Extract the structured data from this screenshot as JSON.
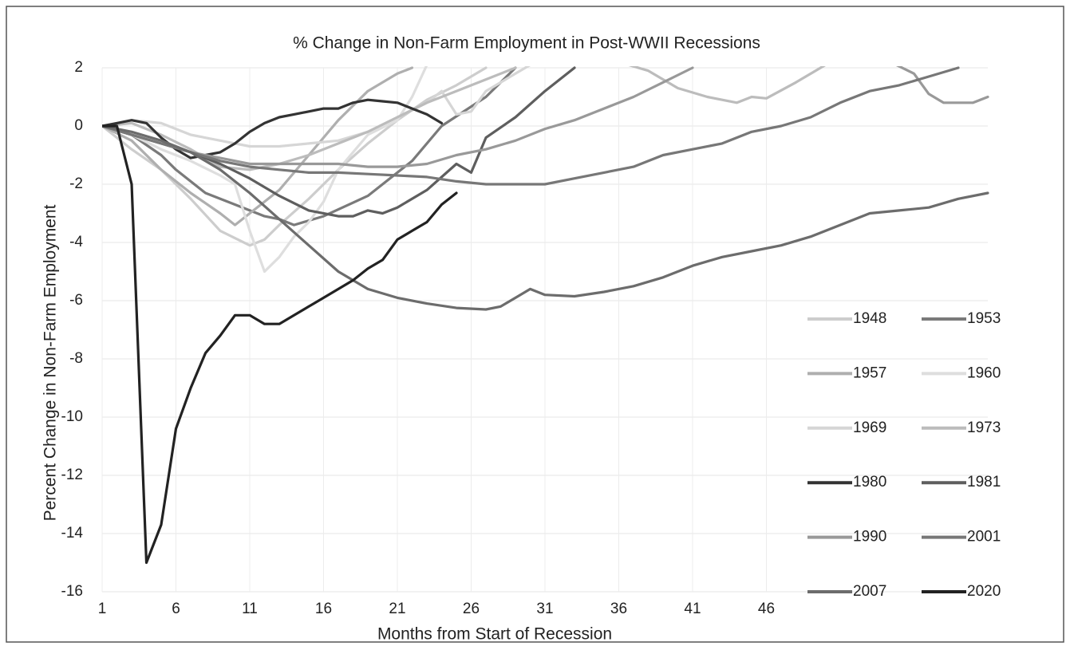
{
  "chart_data": {
    "type": "line",
    "title": "% Change in Non-Farm Employment in Post-WWII Recessions",
    "x_label": "Months from Start of Recession",
    "y_label": "Percent Change in Non-Farm Employment",
    "xlim": [
      1,
      61
    ],
    "xticks": [
      1,
      6,
      11,
      16,
      21,
      26,
      31,
      36,
      41,
      46
    ],
    "ylim": [
      -16,
      2
    ],
    "yticks": [
      -16,
      -14,
      -12,
      -10,
      -8,
      -6,
      -4,
      -2,
      0,
      2
    ],
    "grid": true,
    "legend_position": "lower right",
    "series": [
      {
        "name": "1948",
        "color": "#cdcdcd",
        "x": [
          1,
          3,
          5,
          7,
          9,
          11,
          12,
          13,
          15,
          17,
          19,
          21,
          23,
          25,
          27
        ],
        "values": [
          0,
          -0.8,
          -1.5,
          -2.5,
          -3.6,
          -4.1,
          -3.9,
          -3.4,
          -2.5,
          -1.5,
          -0.6,
          0.2,
          0.9,
          1.4,
          2.0
        ]
      },
      {
        "name": "1953",
        "color": "#7a7a7a",
        "x": [
          1,
          3,
          5,
          6,
          8,
          10,
          12,
          13,
          14,
          16,
          19,
          22,
          24,
          27,
          29
        ],
        "values": [
          0,
          -0.3,
          -1.0,
          -1.5,
          -2.3,
          -2.7,
          -3.1,
          -3.2,
          -3.4,
          -3.1,
          -2.4,
          -1.2,
          0,
          1.0,
          2.0
        ]
      },
      {
        "name": "1957",
        "color": "#afafaf",
        "x": [
          1,
          3,
          5,
          7,
          9,
          10,
          11,
          13,
          15,
          17,
          19,
          21,
          22
        ],
        "values": [
          0,
          -0.5,
          -1.5,
          -2.3,
          -3.0,
          -3.4,
          -3.0,
          -2.2,
          -1.0,
          0.2,
          1.2,
          1.8,
          2.0
        ]
      },
      {
        "name": "1960",
        "color": "#dedede",
        "x": [
          1,
          3,
          5,
          7,
          9,
          10,
          11,
          12,
          13,
          14,
          15,
          16,
          17,
          19,
          21,
          22,
          23
        ],
        "values": [
          0,
          -0.3,
          -0.8,
          -1.2,
          -1.7,
          -2.0,
          -3.6,
          -5.0,
          -4.5,
          -3.8,
          -3.3,
          -2.6,
          -1.5,
          -0.3,
          0.2,
          1.0,
          2.1
        ]
      },
      {
        "name": "1969",
        "color": "#d6d6d6",
        "x": [
          1,
          3,
          5,
          7,
          9,
          11,
          13,
          15,
          17,
          19,
          21,
          23,
          24,
          25,
          26,
          27,
          29,
          30
        ],
        "values": [
          0,
          0.2,
          0.1,
          -0.3,
          -0.5,
          -0.7,
          -0.7,
          -0.6,
          -0.5,
          -0.2,
          0.3,
          0.8,
          1.2,
          0.4,
          0.5,
          1.2,
          1.8,
          2.1
        ]
      },
      {
        "name": "1973",
        "color": "#bcbcbc",
        "x": [
          1,
          3,
          5,
          7,
          9,
          11,
          13,
          15,
          17,
          19,
          21,
          23,
          25,
          27,
          29,
          30,
          36,
          38,
          40,
          42,
          44,
          45,
          46,
          48,
          50
        ],
        "values": [
          0,
          0.1,
          -0.3,
          -0.8,
          -1.4,
          -1.5,
          -1.3,
          -1.0,
          -0.6,
          -0.2,
          0.3,
          0.8,
          1.2,
          1.6,
          2.0,
          null,
          2.2,
          1.9,
          1.3,
          1.0,
          0.8,
          1.0,
          0.95,
          1.5,
          2.1
        ]
      },
      {
        "name": "1980",
        "color": "#333333",
        "x": [
          1,
          2,
          3,
          4,
          5,
          6,
          7,
          8,
          9,
          10,
          11,
          12,
          13,
          14,
          15,
          16,
          17,
          18,
          19,
          20,
          21,
          22,
          23,
          24
        ],
        "values": [
          0,
          0.1,
          0.2,
          0.1,
          -0.4,
          -0.8,
          -1.1,
          -1.0,
          -0.9,
          -0.6,
          -0.2,
          0.1,
          0.3,
          0.4,
          0.5,
          0.6,
          0.6,
          0.8,
          0.9,
          0.85,
          0.8,
          0.6,
          0.4,
          0.1
        ]
      },
      {
        "name": "1981",
        "color": "#5e5e5e",
        "x": [
          1,
          3,
          5,
          7,
          9,
          11,
          13,
          15,
          17,
          18,
          19,
          20,
          21,
          23,
          25,
          26,
          27,
          29,
          31,
          33
        ],
        "values": [
          0,
          -0.3,
          -0.6,
          -0.9,
          -1.3,
          -1.8,
          -2.4,
          -2.9,
          -3.1,
          -3.1,
          -2.9,
          -3.0,
          -2.8,
          -2.2,
          -1.3,
          -1.6,
          -0.4,
          0.3,
          1.2,
          2.0
        ]
      },
      {
        "name": "1990",
        "color": "#999999",
        "x": [
          1,
          3,
          5,
          7,
          9,
          11,
          13,
          15,
          17,
          19,
          21,
          23,
          25,
          27,
          29,
          31,
          33,
          35,
          37,
          39,
          41,
          42,
          54,
          56,
          57,
          58,
          60,
          61
        ],
        "values": [
          0,
          -0.3,
          -0.6,
          -0.9,
          -1.1,
          -1.3,
          -1.3,
          -1.3,
          -1.3,
          -1.4,
          -1.4,
          -1.3,
          -1.0,
          -0.8,
          -0.5,
          -0.1,
          0.2,
          0.6,
          1.0,
          1.5,
          2.0,
          null,
          2.3,
          1.8,
          1.1,
          0.8,
          0.8,
          1.0
        ]
      },
      {
        "name": "2001",
        "color": "#777777",
        "x": [
          1,
          3,
          5,
          7,
          9,
          11,
          13,
          15,
          17,
          19,
          21,
          23,
          25,
          27,
          29,
          31,
          33,
          35,
          37,
          39,
          41,
          43,
          45,
          47,
          49,
          51,
          53,
          55,
          57,
          59
        ],
        "values": [
          0,
          -0.3,
          -0.6,
          -0.9,
          -1.2,
          -1.4,
          -1.5,
          -1.6,
          -1.6,
          -1.65,
          -1.7,
          -1.75,
          -1.9,
          -2.0,
          -2.0,
          -2.0,
          -1.8,
          -1.6,
          -1.4,
          -1.0,
          -0.8,
          -0.6,
          -0.2,
          0,
          0.3,
          0.8,
          1.2,
          1.4,
          1.7,
          2.0
        ]
      },
      {
        "name": "2007",
        "color": "#6c6c6c",
        "x": [
          1,
          3,
          5,
          7,
          9,
          11,
          13,
          15,
          17,
          19,
          21,
          23,
          25,
          27,
          28,
          29,
          30,
          31,
          33,
          35,
          37,
          39,
          41,
          43,
          45,
          47,
          49,
          51,
          53,
          55,
          57,
          59,
          61
        ],
        "values": [
          0,
          -0.2,
          -0.5,
          -0.9,
          -1.5,
          -2.3,
          -3.2,
          -4.1,
          -5.0,
          -5.6,
          -5.9,
          -6.1,
          -6.25,
          -6.3,
          -6.2,
          -5.9,
          -5.6,
          -5.8,
          -5.85,
          -5.7,
          -5.5,
          -5.2,
          -4.8,
          -4.5,
          -4.3,
          -4.1,
          -3.8,
          -3.4,
          -3.0,
          -2.9,
          -2.8,
          -2.5,
          -2.3
        ]
      },
      {
        "name": "2020",
        "color": "#222222",
        "x": [
          1,
          2,
          3,
          4,
          5,
          6,
          7,
          8,
          9,
          10,
          11,
          12,
          13,
          14,
          15,
          16,
          17,
          18,
          19,
          20,
          21,
          22,
          23,
          24,
          25
        ],
        "values": [
          0,
          0,
          -2,
          -15,
          -13.7,
          -10.4,
          -9,
          -7.8,
          -7.2,
          -6.5,
          -6.5,
          -6.8,
          -6.8,
          -6.5,
          -6.2,
          -5.9,
          -5.6,
          -5.3,
          -4.9,
          -4.6,
          -3.9,
          -3.6,
          -3.3,
          -2.7,
          -2.3
        ]
      }
    ]
  }
}
